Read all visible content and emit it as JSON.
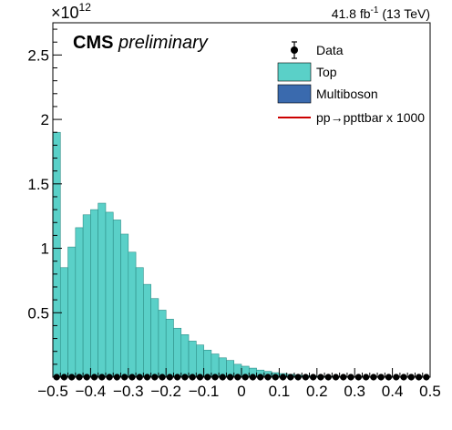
{
  "header": {
    "cms": "CMS",
    "preliminary": "preliminary",
    "exponent_base": "×10",
    "exponent_power": "12",
    "lumi_value": "41.8 fb",
    "lumi_power": "-1",
    "lumi_energy": " (13 TeV)"
  },
  "legend": {
    "items": [
      {
        "label": "Data",
        "kind": "marker",
        "color": "#000000"
      },
      {
        "label": "Top",
        "kind": "box",
        "color": "#5ad0c8"
      },
      {
        "label": "Multiboson",
        "kind": "box",
        "color": "#3a6aae"
      },
      {
        "label": "pp→ppttbar x 1000",
        "kind": "line",
        "color": "#cc0000"
      }
    ]
  },
  "chart_data": {
    "type": "bar",
    "title": "",
    "xlabel": "",
    "ylabel": "",
    "xlim": [
      -0.5,
      0.5
    ],
    "ylim": [
      0,
      2.75
    ],
    "y_scale_factor": "1e12",
    "x_ticks": [
      -0.5,
      -0.4,
      -0.3,
      -0.2,
      -0.1,
      0,
      0.1,
      0.2,
      0.3,
      0.4,
      0.5
    ],
    "x_tick_labels": [
      "−0.5",
      "−0.4",
      "−0.3",
      "−0.2",
      "−0.1",
      "0",
      "0.1",
      "0.2",
      "0.3",
      "0.4",
      "0.5"
    ],
    "y_ticks": [
      0.5,
      1,
      1.5,
      2,
      2.5
    ],
    "y_tick_labels": [
      "0.5",
      "1",
      "1.5",
      "2",
      "2.5"
    ],
    "bin_edges_start": -0.5,
    "bin_width": 0.02,
    "series": [
      {
        "name": "Top",
        "color": "#5ad0c8",
        "values": [
          1.9,
          0.85,
          1.01,
          1.16,
          1.26,
          1.3,
          1.35,
          1.28,
          1.22,
          1.11,
          0.97,
          0.85,
          0.72,
          0.61,
          0.52,
          0.45,
          0.38,
          0.33,
          0.28,
          0.25,
          0.21,
          0.18,
          0.15,
          0.13,
          0.1,
          0.085,
          0.07,
          0.055,
          0.045,
          0.035,
          0.028,
          0.022,
          0.017,
          0.013,
          0.01,
          0.008,
          0.006,
          0.005,
          0.004,
          0.003,
          0.002,
          0.002,
          0.001,
          0.001,
          0.001,
          0.0,
          0.0,
          0.0,
          0.0,
          0.0
        ]
      },
      {
        "name": "Data",
        "color": "#000000",
        "values": [
          0,
          0,
          0,
          0,
          0,
          0,
          0,
          0,
          0,
          0,
          0,
          0,
          0,
          0,
          0,
          0,
          0,
          0,
          0,
          0,
          0,
          0,
          0,
          0,
          0,
          0,
          0,
          0,
          0,
          0,
          0,
          0,
          0,
          0,
          0,
          0,
          0,
          0,
          0,
          0,
          0,
          0,
          0,
          0,
          0,
          0,
          0,
          0,
          0,
          0
        ]
      }
    ]
  }
}
